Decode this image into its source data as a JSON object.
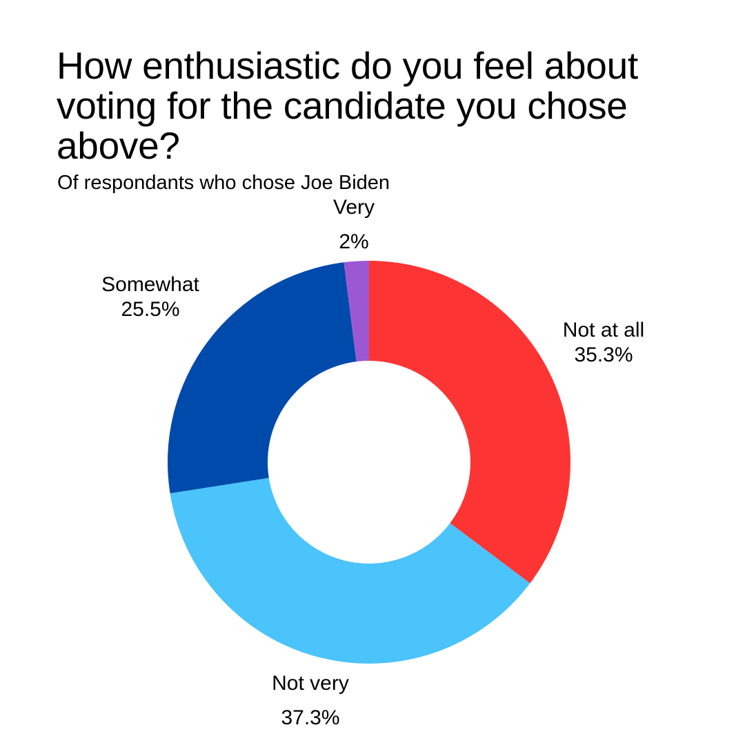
{
  "chart_data": {
    "type": "pie",
    "variant": "donut",
    "title": "How enthusiastic do you feel about voting for the candidate you chose above?",
    "subtitle": "Of respondants who chose Joe Biden",
    "start": "top",
    "direction": "clockwise",
    "slices": [
      {
        "key": "notatall",
        "label": "Not at all",
        "value": 35.3,
        "display": "35.3%",
        "color": "#fd3434"
      },
      {
        "key": "notvery",
        "label": "Not very",
        "value": 37.3,
        "display": "37.3%",
        "color": "#4bc3fb"
      },
      {
        "key": "somewhat",
        "label": "Somewhat",
        "value": 25.5,
        "display": "25.5%",
        "color": "#004aab"
      },
      {
        "key": "very",
        "label": "Very",
        "value": 2,
        "display": "2%",
        "color": "#9c58d3"
      }
    ]
  }
}
